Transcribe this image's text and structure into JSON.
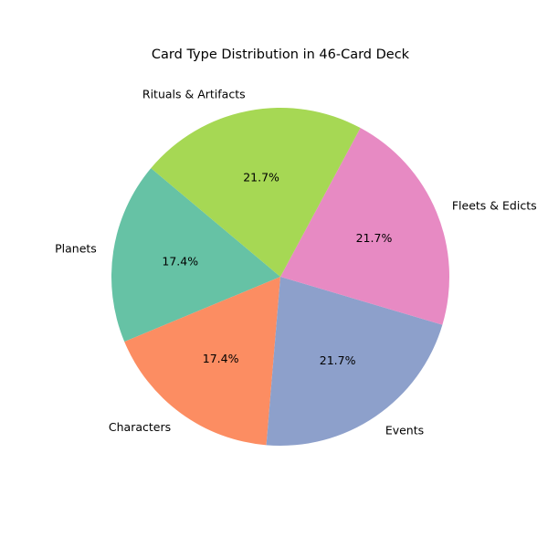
{
  "chart_data": {
    "type": "pie",
    "title": "Card Type Distribution in 46-Card Deck",
    "categories": [
      "Planets",
      "Characters",
      "Events",
      "Fleets & Edicts",
      "Rituals & Artifacts"
    ],
    "values": [
      8,
      8,
      10,
      10,
      10
    ],
    "percent_labels": [
      "17.4%",
      "17.4%",
      "21.7%",
      "21.7%",
      "21.7%"
    ],
    "colors": [
      "#66c2a5",
      "#fc8d62",
      "#8da0cb",
      "#e78ac3",
      "#a6d854"
    ],
    "start_angle_deg": 140,
    "direction": "counterclockwise",
    "legend": "none"
  }
}
